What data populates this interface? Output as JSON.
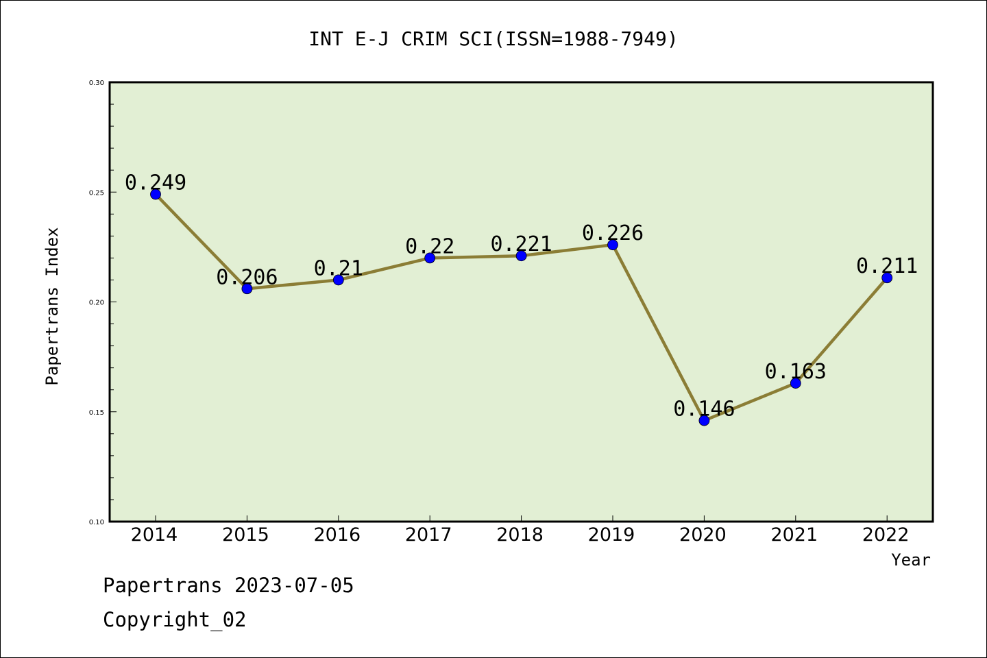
{
  "chart_data": {
    "type": "line",
    "title": "INT E-J CRIM SCI(ISSN=1988-7949)",
    "xlabel": "Year",
    "ylabel": "Papertrans Index",
    "categories": [
      "2014",
      "2015",
      "2016",
      "2017",
      "2018",
      "2019",
      "2020",
      "2021",
      "2022"
    ],
    "values": [
      0.249,
      0.206,
      0.21,
      0.22,
      0.221,
      0.226,
      0.146,
      0.163,
      0.211
    ],
    "data_labels": [
      "0.249",
      "0.206",
      "0.21",
      "0.22",
      "0.221",
      "0.226",
      "0.146",
      "0.163",
      "0.211"
    ],
    "ylim": [
      0.1,
      0.3
    ],
    "y_ticks": [
      "0.10",
      "0.15",
      "0.20",
      "0.25",
      "0.30"
    ],
    "grid": false,
    "legend": "none",
    "colors": {
      "plot_background": "#e2efd4",
      "line": "#8b7d35",
      "marker": "#0000ff"
    }
  },
  "footer": {
    "line1": "Papertrans 2023-07-05",
    "line2": "Copyright_02"
  }
}
